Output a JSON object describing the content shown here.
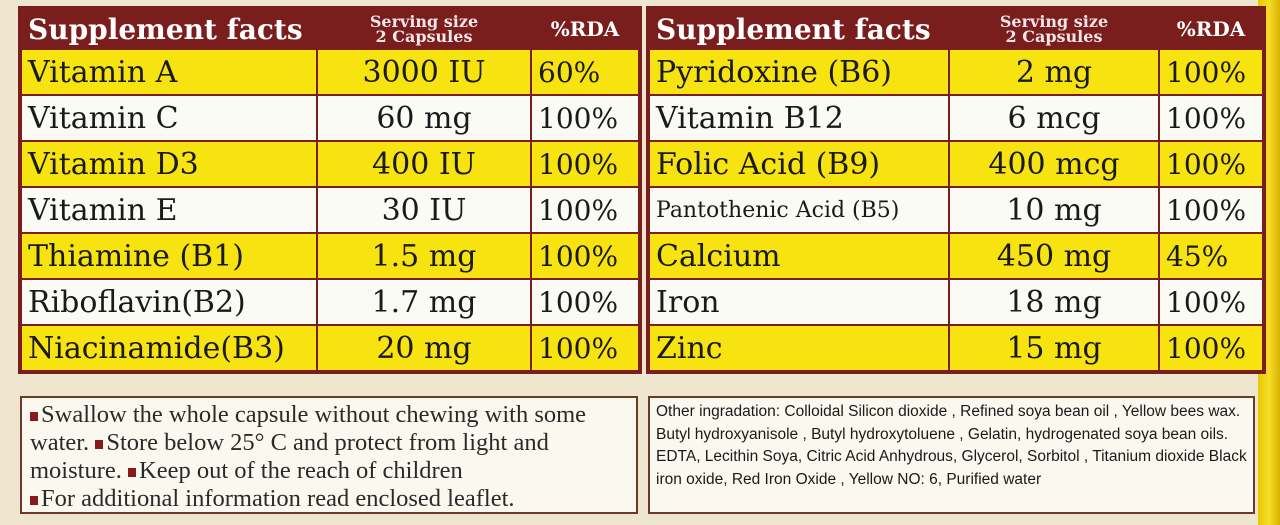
{
  "colors": {
    "header": "#7a1d1d",
    "yellow_row": "#f6e310",
    "white_row": "#fbfbf6",
    "bullet": "#8a1a1a"
  },
  "left_table": {
    "headers": {
      "title": "Supplement facts",
      "serving": "Serving size",
      "serving2": "2 Capsules",
      "rda": "%RDA"
    },
    "rows": [
      {
        "name": "Vitamin A",
        "amount": "3000 IU",
        "rda": "60%"
      },
      {
        "name": "Vitamin C",
        "amount": "60 mg",
        "rda": "100%"
      },
      {
        "name": "Vitamin D3",
        "amount": "400 IU",
        "rda": "100%"
      },
      {
        "name": "Vitamin E",
        "amount": "30 IU",
        "rda": "100%"
      },
      {
        "name": "Thiamine (B1)",
        "amount": "1.5 mg",
        "rda": "100%"
      },
      {
        "name": "Riboflavin(B2)",
        "amount": "1.7 mg",
        "rda": "100%"
      },
      {
        "name": "Niacinamide(B3)",
        "amount": "20 mg",
        "rda": "100%"
      }
    ]
  },
  "right_table": {
    "headers": {
      "title": "Supplement facts",
      "serving": "Serving size",
      "serving2": "2 Capsules",
      "rda": "%RDA"
    },
    "rows": [
      {
        "name": "Pyridoxine (B6)",
        "amount": "2 mg",
        "rda": "100%"
      },
      {
        "name": "Vitamin B12",
        "amount": "6 mcg",
        "rda": "100%"
      },
      {
        "name": "Folic Acid (B9)",
        "amount": "400 mcg",
        "rda": "100%"
      },
      {
        "name": "Pantothenic Acid (B5)",
        "amount": "10 mg",
        "rda": "100%"
      },
      {
        "name": "Calcium",
        "amount": "450 mg",
        "rda": "45%"
      },
      {
        "name": "Iron",
        "amount": "18 mg",
        "rda": "100%"
      },
      {
        "name": "Zinc",
        "amount": "15 mg",
        "rda": "100%"
      }
    ]
  },
  "instructions": [
    "Swallow the whole capsule without chewing with some water.",
    "Store below 25° C and protect from light and moisture.",
    "Keep out of the reach of children",
    "For additional information read enclosed leaflet."
  ],
  "ingredients": "Other ingradation: Colloidal Silicon dioxide , Refined soya bean oil , Yellow bees wax. Butyl hydroxyanisole , Butyl hydroxytoluene , Gelatin, hydrogenated soya bean oils. EDTA, Lecithin Soya, Citric Acid Anhydrous, Glycerol, Sorbitol , Titanium dioxide Black iron oxide, Red Iron Oxide , Yellow NO: 6, Purified water"
}
